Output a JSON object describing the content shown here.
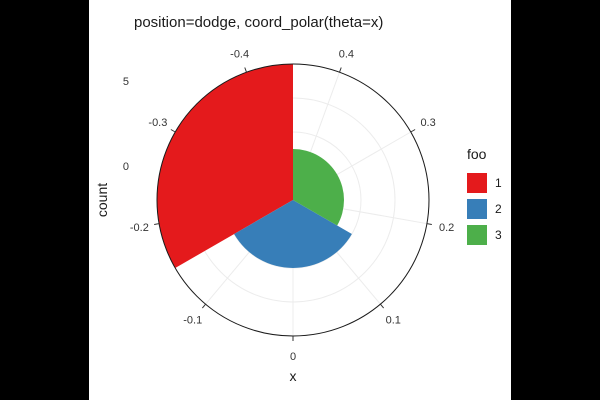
{
  "chart_data": {
    "type": "bar",
    "coord": "polar",
    "title": "position=dodge, coord_polar(theta=x)",
    "xlabel": "x",
    "ylabel": "count",
    "theta_range": [
      -0.45,
      0.45
    ],
    "theta_ticks": [
      {
        "value": 0,
        "label": "0"
      },
      {
        "value": -0.1,
        "label": "-0.1"
      },
      {
        "value": -0.2,
        "label": "-0.2"
      },
      {
        "value": -0.3,
        "label": "-0.3"
      },
      {
        "value": -0.4,
        "label": "-0.4"
      },
      {
        "value": 0.4,
        "label": "0.4"
      },
      {
        "value": 0.3,
        "label": "0.3"
      },
      {
        "value": 0.2,
        "label": "0.2"
      },
      {
        "value": 0.1,
        "label": "0.1"
      }
    ],
    "r_range": [
      -2,
      6
    ],
    "r_ticks": [
      {
        "value": 0,
        "label": "0"
      },
      {
        "value": 5,
        "label": "5"
      }
    ],
    "series": [
      {
        "name": "1",
        "theta_start": -0.45,
        "theta_end": -0.15,
        "value": 6,
        "color": "#E41A1C"
      },
      {
        "name": "2",
        "theta_start": -0.15,
        "theta_end": 0.15,
        "value": 2,
        "color": "#377EB8"
      },
      {
        "name": "3",
        "theta_start": 0.15,
        "theta_end": 0.45,
        "value": 1,
        "color": "#4DAF4A"
      }
    ],
    "legend": {
      "title": "foo",
      "position": "right"
    },
    "grid": true
  }
}
